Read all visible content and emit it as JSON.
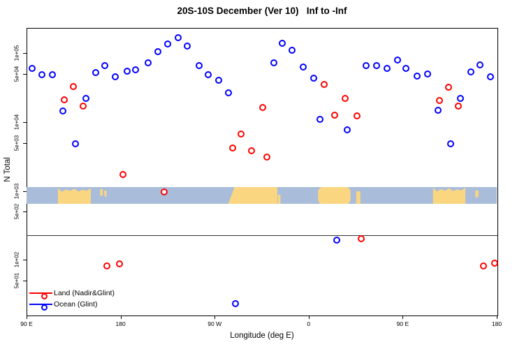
{
  "title": "20S-10S December (Ver 10)   Inf to -Inf",
  "chart_data": {
    "type": "scatter",
    "title": "20S-10S December (Ver 10)   Inf to -Inf",
    "xlabel": "Longitude (deg E)",
    "ylabel": "N Total",
    "x_axis": {
      "lim": [
        90,
        540
      ],
      "ticks": [
        {
          "label": "90 E",
          "value": 90
        },
        {
          "label": "180",
          "value": 180
        },
        {
          "label": "90 W",
          "value": 270
        },
        {
          "label": "0",
          "value": 360
        },
        {
          "label": "90 E",
          "value": 450
        },
        {
          "label": "180",
          "value": 540
        }
      ]
    },
    "y_axis": {
      "scale": "log",
      "lim": [
        16,
        232000
      ],
      "ticks": [
        {
          "label": "1e+05",
          "value": 100000
        },
        {
          "label": "5e+04",
          "value": 50000
        },
        {
          "label": "1e+04",
          "value": 10000
        },
        {
          "label": "5e+03",
          "value": 5000
        },
        {
          "label": "1e+03",
          "value": 1000
        },
        {
          "label": "5e+02",
          "value": 500
        },
        {
          "label": "1e+02",
          "value": 100
        },
        {
          "label": "5e+01",
          "value": 50
        }
      ]
    },
    "series": [
      {
        "name": "Land (Nadir&Glint)",
        "color": "#ff0000",
        "points": [
          [
            126,
            21000
          ],
          [
            135,
            32700
          ],
          [
            144,
            17000
          ],
          [
            167,
            82
          ],
          [
            179,
            87
          ],
          [
            182,
            1730
          ],
          [
            222,
            970
          ],
          [
            287,
            4200
          ],
          [
            295,
            6700
          ],
          [
            305,
            3830
          ],
          [
            316,
            16200
          ],
          [
            320,
            3100
          ],
          [
            375,
            35000
          ],
          [
            385,
            12600
          ],
          [
            395,
            22000
          ],
          [
            406,
            12300
          ],
          [
            410,
            203
          ],
          [
            485,
            20500
          ],
          [
            494,
            31900
          ],
          [
            503,
            17000
          ],
          [
            527,
            82
          ],
          [
            538,
            90
          ]
        ]
      },
      {
        "name": "Ocean (Glint)",
        "color": "#0000ff",
        "points": [
          [
            95,
            59800
          ],
          [
            105,
            48600
          ],
          [
            115,
            48600
          ],
          [
            125,
            14500
          ],
          [
            137,
            4900
          ],
          [
            147,
            22000
          ],
          [
            156,
            52000
          ],
          [
            165,
            65700
          ],
          [
            175,
            45300
          ],
          [
            186,
            54600
          ],
          [
            194,
            57200
          ],
          [
            206,
            72100
          ],
          [
            216,
            104800
          ],
          [
            225,
            135400
          ],
          [
            235,
            167000
          ],
          [
            244,
            126300
          ],
          [
            255,
            65700
          ],
          [
            264,
            48600
          ],
          [
            274,
            40300
          ],
          [
            283,
            26500
          ],
          [
            290,
            23
          ],
          [
            327,
            72100
          ],
          [
            335,
            138700
          ],
          [
            344,
            109700
          ],
          [
            355,
            62800
          ],
          [
            365,
            43300
          ],
          [
            371,
            10900
          ],
          [
            387,
            194
          ],
          [
            397,
            7700
          ],
          [
            415,
            65700
          ],
          [
            425,
            65700
          ],
          [
            435,
            59800
          ],
          [
            445,
            79200
          ],
          [
            453,
            59800
          ],
          [
            464,
            46400
          ],
          [
            474,
            49700
          ],
          [
            484,
            14800
          ],
          [
            496,
            4800
          ],
          [
            505,
            22000
          ],
          [
            515,
            53300
          ],
          [
            524,
            67300
          ],
          [
            534,
            45300
          ]
        ]
      }
    ],
    "reference_line": {
      "value": 230
    },
    "map_strip": {
      "value_top": 1150,
      "value_bottom": 650,
      "ocean_color": "#a9bcd9",
      "land_color": "#fbd681",
      "land_segments": [
        {
          "lon": [
            120,
            151.5
          ],
          "top": 0.22,
          "bottom": 1,
          "shape": "jagged"
        },
        {
          "lon": [
            160.5,
            163
          ],
          "top": 0.12,
          "bottom": 0.5,
          "shape": "block"
        },
        {
          "lon": [
            164.5,
            166.5
          ],
          "top": 0.2,
          "bottom": 0.55,
          "shape": "block"
        },
        {
          "lon": [
            283,
            330
          ],
          "top": 0,
          "bottom": 1,
          "shape": "slope-left"
        },
        {
          "lon": [
            330.5,
            333
          ],
          "top": 0.45,
          "bottom": 1,
          "shape": "block"
        },
        {
          "lon": [
            369,
            400
          ],
          "top": 0,
          "bottom": 1,
          "shape": "round-left"
        },
        {
          "lon": [
            405.5,
            409.5
          ],
          "top": 0.25,
          "bottom": 1,
          "shape": "block"
        },
        {
          "lon": [
            479,
            510
          ],
          "top": 0.2,
          "bottom": 1,
          "shape": "jagged"
        },
        {
          "lon": [
            519.5,
            522.5
          ],
          "top": 0.2,
          "bottom": 0.6,
          "shape": "block"
        }
      ]
    }
  },
  "legend": {
    "items": [
      {
        "label": "Land (Nadir&Glint)",
        "color": "#ff0000"
      },
      {
        "label": "Ocean (Glint)",
        "color": "#0000ff"
      }
    ]
  }
}
